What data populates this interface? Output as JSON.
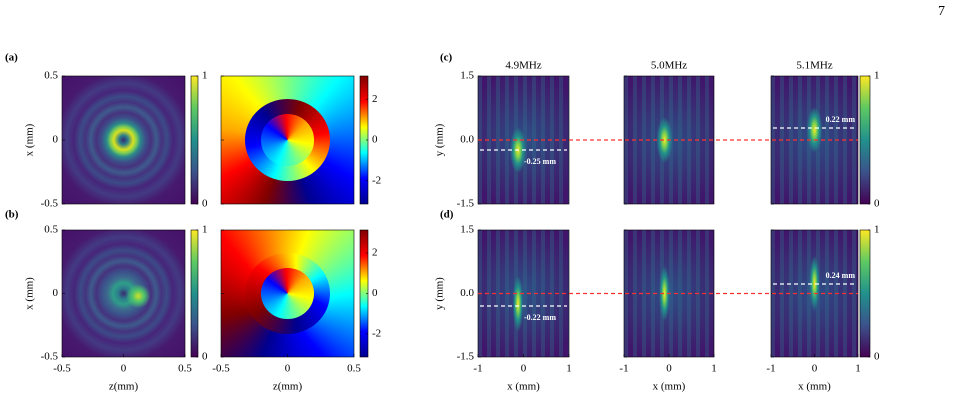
{
  "page_number": "7",
  "panel_labels": [
    "(a)",
    "(b)",
    "(c)",
    "(d)"
  ],
  "left_group": {
    "y_label": "x (mm)",
    "x_label": "z(mm)",
    "lim": [
      -0.5,
      0.5
    ],
    "ticks": [
      -0.5,
      0,
      0.5
    ],
    "amplitude_colorbar": {
      "lim": [
        0,
        1
      ],
      "ticks": [
        0,
        1
      ]
    },
    "phase_colorbar": {
      "lim": [
        -3.14,
        3.14
      ],
      "ticks": [
        -2,
        0,
        2
      ]
    }
  },
  "right_group": {
    "frequencies": [
      "4.9MHz",
      "5.0MHz",
      "5.1MHz"
    ],
    "y_label": "y (mm)",
    "x_label": "x (mm)",
    "ylim": [
      -1.5,
      1.5
    ],
    "yticks": [
      -1.5,
      {
        "value": 0,
        "label": "0.0"
      },
      1.5
    ],
    "xlim": [
      -1,
      1
    ],
    "xticks": [
      -1,
      0,
      1
    ],
    "colorbar": {
      "lim": [
        0,
        1
      ],
      "ticks": [
        0,
        1
      ]
    },
    "shift_labels": [
      [
        "-0.25 mm",
        "0.22 mm"
      ],
      [
        "-0.22 mm",
        "0.24 mm"
      ]
    ]
  }
}
